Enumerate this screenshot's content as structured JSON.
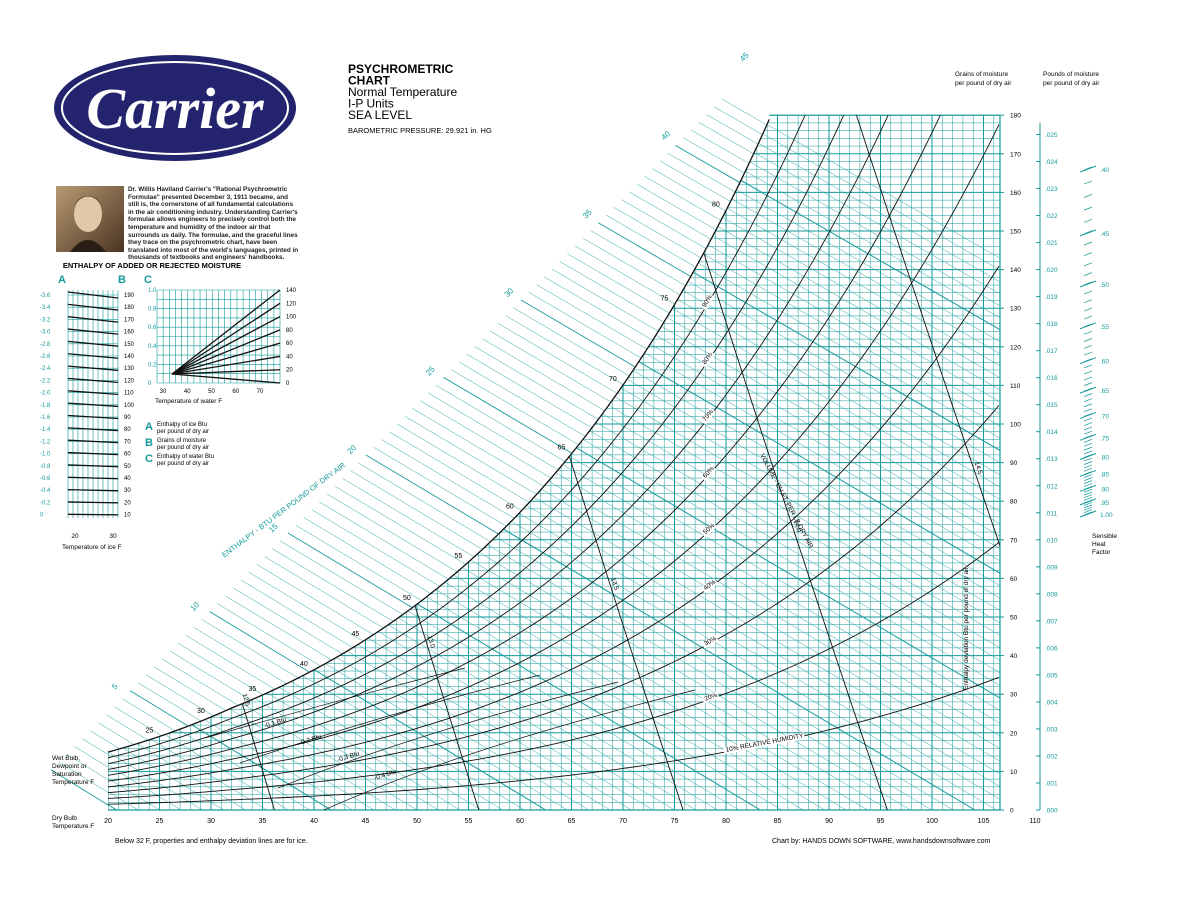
{
  "logo": "Carrier",
  "title": {
    "lines": [
      "PSYCHROMETRIC",
      "CHART",
      "Normal Temperature",
      "I-P Units",
      "SEA LEVEL"
    ],
    "pressure": "BAROMETRIC PRESSURE: 29.921 in. HG"
  },
  "right_axes": {
    "grains_title": [
      "Grains of moisture",
      "per pound of dry air"
    ],
    "pounds_title": [
      "Pounds of moisture",
      "per pound of dry air"
    ],
    "grains_ticks": [
      0,
      10,
      20,
      30,
      40,
      50,
      60,
      70,
      80,
      90,
      100,
      110,
      120,
      130,
      140,
      150,
      160,
      170,
      180
    ],
    "pounds_ticks": [
      ".000",
      ".001",
      ".002",
      ".003",
      ".004",
      ".005",
      ".006",
      ".007",
      ".008",
      ".009",
      ".010",
      ".011",
      ".012",
      ".013",
      ".014",
      ".015",
      ".016",
      ".017",
      ".018",
      ".019",
      ".020",
      ".021",
      ".022",
      ".023",
      ".024",
      ".025"
    ],
    "shf_ticks": [
      ".40",
      ".45",
      ".50",
      ".55",
      ".60",
      ".65",
      ".70",
      ".75",
      ".80",
      ".85",
      ".90",
      ".95",
      "1.00"
    ],
    "shf_title": [
      "Sensible",
      "Heat",
      "Factor"
    ]
  },
  "bio": "Dr. Willis Haviland Carrier's \"Rational Psychrometric Formulae\" presented December 3, 1911 became, and still is, the cornerstone of all fundamental calculations in the air conditioning industry. Understanding Carrier's formulae allows engineers to precisely control both the temperature and humidity of the indoor air that surrounds us daily. The formulae, and the graceful lines they trace on the psychrometric chart, have been translated into most of the world's languages, printed in thousands of textbooks and engineers' handbooks.",
  "moisture": {
    "heading": "ENTHALPY OF ADDED OR REJECTED MOISTURE",
    "letters": [
      "A",
      "B",
      "C"
    ],
    "a_ticks": [
      "-3.6",
      "-3.4",
      "-3.2",
      "-3.0",
      "-2.8",
      "-2.6",
      "-2.4",
      "-2.2",
      "-2.0",
      "-1.8",
      "-1.6",
      "-1.4",
      "-1.2",
      "-1.0",
      "-0.8",
      "-0.6",
      "-0.4",
      "-0.2",
      "0"
    ],
    "b_ticks": [
      190,
      180,
      170,
      160,
      150,
      140,
      130,
      120,
      110,
      100,
      90,
      80,
      70,
      60,
      50,
      40,
      30,
      20,
      10
    ],
    "ice_ticks": [
      20,
      30
    ],
    "ice_title": "Temperature of ice F",
    "c_left_ticks": [
      "1.0",
      "0.8",
      "0.6",
      "0.4",
      "0.2",
      "0"
    ],
    "c_right_ticks": [
      140,
      120,
      100,
      80,
      60,
      40,
      20,
      0
    ],
    "c_bottom_ticks": [
      30,
      40,
      50,
      60,
      70
    ],
    "water_title": "Temperature of water F",
    "legend": [
      {
        "letter": "A",
        "text": [
          "Enthalpy of ice Btu",
          "per pound of dry air"
        ]
      },
      {
        "letter": "B",
        "text": [
          "Grains of moisture",
          "per pound of dry air"
        ]
      },
      {
        "letter": "C",
        "text": [
          "Enthalpy of water Btu",
          "per pound of dry air"
        ]
      }
    ]
  },
  "main": {
    "dry_bulb_ticks": [
      20,
      25,
      30,
      35,
      40,
      45,
      50,
      55,
      60,
      65,
      70,
      75,
      80,
      85,
      90,
      95,
      100,
      105,
      110
    ],
    "wet_bulb_labels": [
      25,
      30,
      35,
      40,
      45,
      50,
      55,
      60,
      65,
      70,
      75,
      80
    ],
    "enthalpy_labels": [
      5,
      10,
      15,
      20,
      25,
      30,
      35,
      40,
      45
    ],
    "enthalpy_title": "ENTHALPY - BTU PER POUND OF DRY AIR",
    "rh_labels": [
      "10% RELATIVE HUMIDITY",
      "20%",
      "30%",
      "40%",
      "50%",
      "60%",
      "70%",
      "80%",
      "90%"
    ],
    "volume_labels": [
      "12.5",
      "13.0",
      "13.5",
      "14.0",
      "14.5"
    ],
    "volume_title": "VOLUME - CU.FT. PER LB DRY AIR",
    "deviation_labels": [
      "-0.1 Btu",
      "-0.2 Btu",
      "-0.3 Btu",
      "-0.4 Btu"
    ],
    "deviation_title": "Enthalpy deviation Btu per pound of dry air",
    "wet_bulb_title": [
      "Wet Bulb,",
      "Dewpoint or",
      "Saturation",
      "Temperature F"
    ],
    "dry_bulb_title": [
      "Dry Bulb",
      "Temperature F"
    ]
  },
  "footer": {
    "note": "Below 32 F, properties and enthalpy deviation lines are for ice.",
    "credit": "Chart by: HANDS DOWN SOFTWARE, www.handsdownsoftware.com"
  }
}
